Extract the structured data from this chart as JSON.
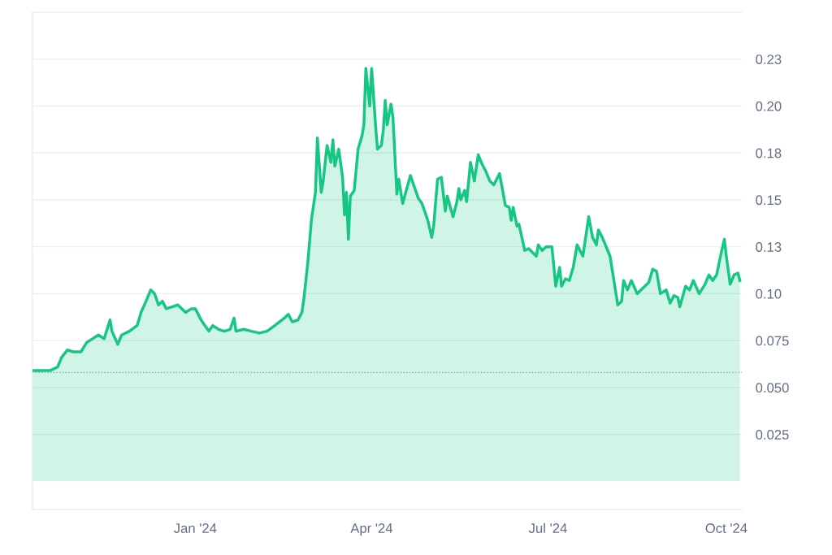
{
  "chart_data": {
    "type": "area",
    "x": [
      "2023-10-09",
      "2023-10-13",
      "2023-10-18",
      "2023-10-22",
      "2023-10-24",
      "2023-10-27",
      "2023-10-30",
      "2023-11-03",
      "2023-11-06",
      "2023-11-09",
      "2023-11-12",
      "2023-11-15",
      "2023-11-18",
      "2023-11-19",
      "2023-11-22",
      "2023-11-24",
      "2023-11-28",
      "2023-12-02",
      "2023-12-04",
      "2023-12-07",
      "2023-12-09",
      "2023-12-11",
      "2023-12-13",
      "2023-12-15",
      "2023-12-17",
      "2023-12-20",
      "2023-12-23",
      "2023-12-27",
      "2023-12-30",
      "2024-01-01",
      "2024-01-04",
      "2024-01-06",
      "2024-01-08",
      "2024-01-10",
      "2024-01-13",
      "2024-01-16",
      "2024-01-19",
      "2024-01-21",
      "2024-01-22",
      "2024-01-26",
      "2024-01-30",
      "2024-02-03",
      "2024-02-07",
      "2024-02-11",
      "2024-02-16",
      "2024-02-18",
      "2024-02-20",
      "2024-02-23",
      "2024-02-25",
      "2024-02-26",
      "2024-02-28",
      "2024-03-01",
      "2024-03-03",
      "2024-03-04",
      "2024-03-06",
      "2024-03-07",
      "2024-03-09",
      "2024-03-11",
      "2024-03-12",
      "2024-03-13",
      "2024-03-15",
      "2024-03-17",
      "2024-03-18",
      "2024-03-19",
      "2024-03-20",
      "2024-03-21",
      "2024-03-23",
      "2024-03-25",
      "2024-03-27",
      "2024-03-28",
      "2024-03-29",
      "2024-03-31",
      "2024-04-01",
      "2024-04-03",
      "2024-04-04",
      "2024-04-06",
      "2024-04-07",
      "2024-04-08",
      "2024-04-09",
      "2024-04-11",
      "2024-04-12",
      "2024-04-14",
      "2024-04-15",
      "2024-04-17",
      "2024-04-21",
      "2024-04-22",
      "2024-04-25",
      "2024-04-27",
      "2024-04-30",
      "2024-05-02",
      "2024-05-03",
      "2024-05-05",
      "2024-05-07",
      "2024-05-09",
      "2024-05-10",
      "2024-05-13",
      "2024-05-15",
      "2024-05-16",
      "2024-05-17",
      "2024-05-19",
      "2024-05-20",
      "2024-05-22",
      "2024-05-24",
      "2024-05-26",
      "2024-05-28",
      "2024-05-30",
      "2024-06-01",
      "2024-06-03",
      "2024-06-06",
      "2024-06-09",
      "2024-06-11",
      "2024-06-12",
      "2024-06-13",
      "2024-06-15",
      "2024-06-16",
      "2024-06-19",
      "2024-06-21",
      "2024-06-25",
      "2024-06-26",
      "2024-06-28",
      "2024-06-30",
      "2024-07-03",
      "2024-07-05",
      "2024-07-07",
      "2024-07-08",
      "2024-07-10",
      "2024-07-12",
      "2024-07-14",
      "2024-07-16",
      "2024-07-19",
      "2024-07-22",
      "2024-07-24",
      "2024-07-26",
      "2024-07-27",
      "2024-07-29",
      "2024-08-02",
      "2024-08-04",
      "2024-08-06",
      "2024-08-08",
      "2024-08-09",
      "2024-08-11",
      "2024-08-13",
      "2024-08-16",
      "2024-08-18",
      "2024-08-22",
      "2024-08-24",
      "2024-08-26",
      "2024-08-28",
      "2024-08-31",
      "2024-09-02",
      "2024-09-04",
      "2024-09-06",
      "2024-09-07",
      "2024-09-10",
      "2024-09-12",
      "2024-09-14",
      "2024-09-17",
      "2024-09-20",
      "2024-09-22",
      "2024-09-24",
      "2024-09-26",
      "2024-09-28",
      "2024-09-30",
      "2024-10-01",
      "2024-10-03",
      "2024-10-05",
      "2024-10-07",
      "2024-10-08"
    ],
    "series": [
      {
        "color": "#16c784",
        "values": [
          0.059,
          0.059,
          0.059,
          0.061,
          0.066,
          0.07,
          0.069,
          0.069,
          0.074,
          0.076,
          0.078,
          0.076,
          0.086,
          0.08,
          0.073,
          0.078,
          0.08,
          0.083,
          0.09,
          0.097,
          0.102,
          0.1,
          0.094,
          0.096,
          0.092,
          0.093,
          0.094,
          0.09,
          0.092,
          0.092,
          0.086,
          0.083,
          0.08,
          0.083,
          0.081,
          0.08,
          0.081,
          0.087,
          0.08,
          0.081,
          0.08,
          0.079,
          0.08,
          0.083,
          0.087,
          0.089,
          0.085,
          0.086,
          0.09,
          0.097,
          0.116,
          0.14,
          0.154,
          0.183,
          0.154,
          0.16,
          0.179,
          0.17,
          0.182,
          0.168,
          0.177,
          0.162,
          0.142,
          0.154,
          0.129,
          0.152,
          0.155,
          0.177,
          0.184,
          0.19,
          0.22,
          0.2,
          0.22,
          0.19,
          0.177,
          0.179,
          0.187,
          0.203,
          0.19,
          0.201,
          0.194,
          0.153,
          0.161,
          0.148,
          0.163,
          0.16,
          0.151,
          0.148,
          0.139,
          0.13,
          0.136,
          0.161,
          0.162,
          0.144,
          0.152,
          0.141,
          0.149,
          0.156,
          0.15,
          0.155,
          0.149,
          0.17,
          0.16,
          0.174,
          0.169,
          0.165,
          0.16,
          0.158,
          0.164,
          0.147,
          0.146,
          0.139,
          0.146,
          0.136,
          0.137,
          0.123,
          0.124,
          0.12,
          0.126,
          0.123,
          0.125,
          0.125,
          0.104,
          0.114,
          0.104,
          0.108,
          0.107,
          0.114,
          0.126,
          0.12,
          0.141,
          0.13,
          0.126,
          0.134,
          0.13,
          0.12,
          0.107,
          0.094,
          0.096,
          0.107,
          0.102,
          0.107,
          0.1,
          0.102,
          0.106,
          0.113,
          0.112,
          0.1,
          0.102,
          0.095,
          0.099,
          0.098,
          0.093,
          0.104,
          0.102,
          0.107,
          0.1,
          0.105,
          0.11,
          0.107,
          0.11,
          0.12,
          0.129,
          0.12,
          0.105,
          0.11,
          0.111,
          0.107
        ]
      }
    ],
    "xlim": [
      "2023-10-09",
      "2024-10-09"
    ],
    "xticks": [
      {
        "value": "2024-01-01",
        "label": "Jan '24"
      },
      {
        "value": "2024-04-01",
        "label": "Apr '24"
      },
      {
        "value": "2024-07-01",
        "label": "Jul '24"
      },
      {
        "value": "2024-10-01",
        "label": "Oct '24"
      }
    ],
    "ylim": [
      -0.015,
      0.25
    ],
    "yticks": [
      {
        "value": 0.025,
        "label": "0.025"
      },
      {
        "value": 0.05,
        "label": "0.050"
      },
      {
        "value": 0.075,
        "label": "0.075"
      },
      {
        "value": 0.1,
        "label": "0.10"
      },
      {
        "value": 0.125,
        "label": "0.13"
      },
      {
        "value": 0.15,
        "label": "0.15"
      },
      {
        "value": 0.175,
        "label": "0.18"
      },
      {
        "value": 0.2,
        "label": "0.20"
      },
      {
        "value": 0.225,
        "label": "0.23"
      }
    ],
    "ref_lines": [
      {
        "axis": "y",
        "value": 0.058,
        "label": null,
        "color": "#999999",
        "line_style": "dotted"
      }
    ],
    "grid": "y"
  }
}
